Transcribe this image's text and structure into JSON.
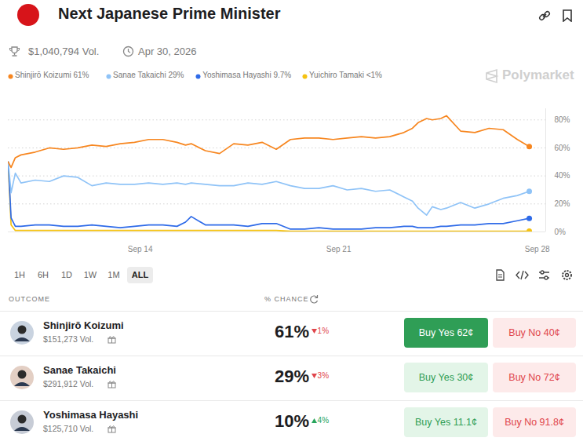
{
  "chart_data": {
    "type": "line",
    "title": "Next Japanese Prime Minister",
    "x": [
      9.35,
      9.45,
      9.6,
      9.8,
      10.3,
      10.8,
      11.3,
      11.8,
      12.3,
      12.8,
      13.3,
      13.8,
      14.3,
      14.8,
      15.3,
      15.6,
      15.8,
      16.3,
      16.8,
      17.3,
      17.8,
      18.3,
      18.8,
      19.3,
      19.8,
      20.3,
      20.8,
      21.3,
      21.8,
      22.3,
      22.8,
      23.3,
      23.6,
      23.8,
      24.1,
      24.3,
      24.6,
      24.8,
      25.3,
      25.8,
      26.3,
      26.8,
      27.3,
      27.72
    ],
    "series": [
      {
        "name": "Shinjirō Koizumi 61%",
        "color": "#f7861f",
        "values": [
          50,
          46,
          53,
          55,
          57,
          60,
          59,
          60,
          62,
          61,
          63,
          64,
          66,
          66,
          64,
          62,
          63,
          58,
          56,
          63,
          62,
          64,
          59,
          66,
          67,
          67,
          66,
          67,
          68,
          67,
          68,
          71,
          74,
          78,
          81,
          80,
          81,
          83,
          72,
          71,
          74,
          73,
          66,
          61
        ]
      },
      {
        "name": "Sanae Takaichi 29%",
        "color": "#8fc3f7",
        "values": [
          50,
          28,
          42,
          35,
          37,
          36,
          40,
          39,
          33,
          35,
          34,
          34,
          35,
          34,
          35,
          34,
          35,
          34,
          33,
          33,
          35,
          34,
          36,
          33,
          31,
          31,
          33,
          30,
          31,
          29,
          30,
          25,
          22,
          17,
          12,
          18,
          16,
          17,
          21,
          17,
          20,
          24,
          26,
          29
        ]
      },
      {
        "name": "Yoshimasa Hayashi 9.7%",
        "color": "#2f6be8",
        "values": [
          50,
          10,
          4,
          4,
          5,
          5,
          4,
          4,
          5,
          4,
          3,
          4,
          5,
          5,
          4,
          7,
          11,
          5,
          5,
          5,
          4,
          6,
          6,
          2,
          2,
          3,
          2,
          2,
          2,
          3,
          3,
          4,
          4,
          3,
          3,
          3,
          4,
          4,
          5,
          5,
          6,
          6,
          8,
          9.7
        ]
      },
      {
        "name": "Yuichiro Tamaki <1%",
        "color": "#f5c211",
        "values": [
          48,
          5,
          1,
          1,
          1,
          1,
          1,
          1,
          1,
          1,
          1,
          1,
          1,
          1,
          1,
          1,
          1,
          1,
          1,
          1,
          1,
          1,
          1,
          0.5,
          0.5,
          0.5,
          0.5,
          0.5,
          0.5,
          0.5,
          0.5,
          0.5,
          0.5,
          0.5,
          0.5,
          0.5,
          0.5,
          0.5,
          0.5,
          0.5,
          0.5,
          0.5,
          0.5,
          0.5
        ]
      }
    ],
    "xlim": [
      9.35,
      28.3
    ],
    "xticks": [
      {
        "value": 14,
        "label": "Sep 14"
      },
      {
        "value": 21,
        "label": "Sep 21"
      },
      {
        "value": 28,
        "label": "Sep 28"
      }
    ],
    "ylim": [
      0,
      88
    ],
    "yticks": [
      {
        "value": 0,
        "label": "0%"
      },
      {
        "value": 20,
        "label": "20%"
      },
      {
        "value": 40,
        "label": "40%"
      },
      {
        "value": 60,
        "label": "60%"
      },
      {
        "value": 80,
        "label": "80%"
      }
    ],
    "grid": true,
    "legend": "top"
  },
  "page": {
    "volume": "$1,040,794 Vol.",
    "end_date": "Apr 30, 2026",
    "brand": "Polymarket",
    "time_ranges": [
      "1H",
      "6H",
      "1D",
      "1W",
      "1M",
      "ALL"
    ],
    "selected_range": "ALL",
    "table": {
      "headers": [
        "OUTCOME",
        "% CHANCE"
      ],
      "rows": [
        {
          "name": "Shinjirō Koizumi",
          "volume": "$151,273 Vol.",
          "chance": "61%",
          "change": "1%",
          "direction": "down",
          "buy_yes": "Buy Yes 62¢",
          "buy_no": "Buy No 40¢"
        },
        {
          "name": "Sanae Takaichi",
          "volume": "$291,912 Vol.",
          "chance": "29%",
          "change": "3%",
          "direction": "down",
          "buy_yes": "Buy Yes 30¢",
          "buy_no": "Buy No 72¢"
        },
        {
          "name": "Yoshimasa Hayashi",
          "volume": "$125,710 Vol.",
          "chance": "10%",
          "change": "4%",
          "direction": "up",
          "buy_yes": "Buy Yes 11.1¢",
          "buy_no": "Buy No 91.8¢"
        }
      ]
    }
  }
}
